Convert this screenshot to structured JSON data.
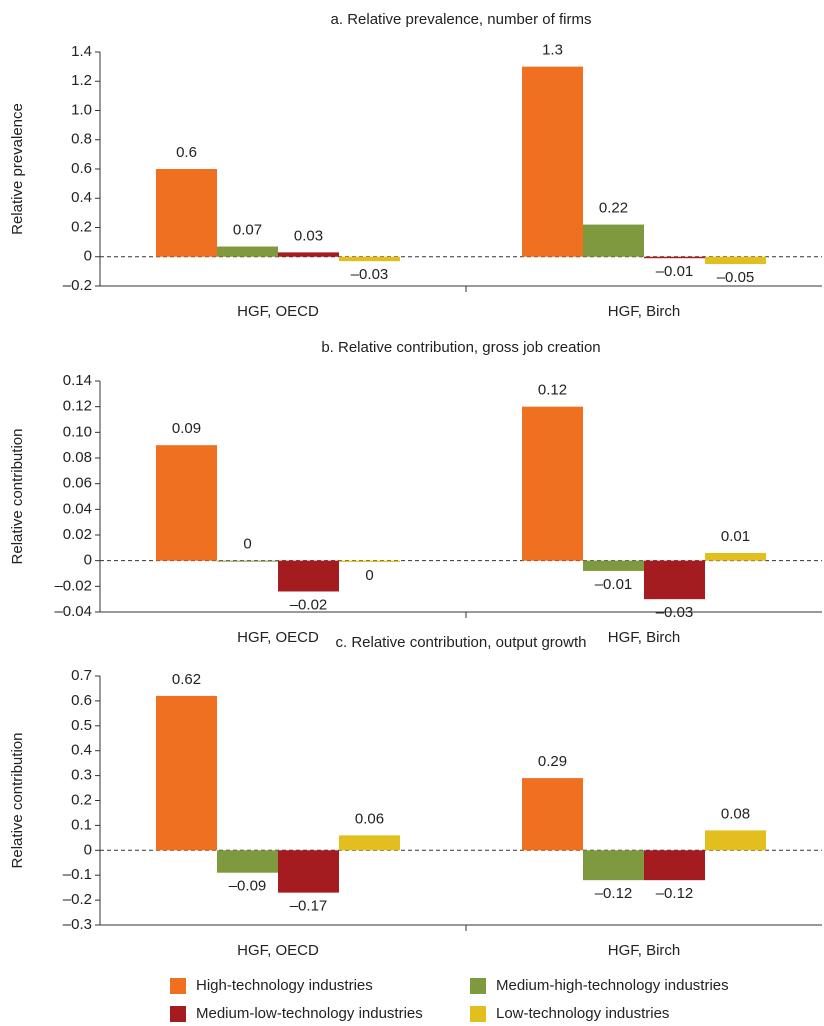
{
  "chart_data": [
    {
      "type": "bar",
      "title": "a. Relative prevalence, number of firms",
      "ylabel": "Relative prevalence",
      "categories": [
        "HGF, OECD",
        "HGF, Birch"
      ],
      "series": [
        {
          "name": "High-technology industries",
          "color": "#f07022",
          "values": [
            0.6,
            1.3
          ],
          "value_labels": [
            "0.6",
            "1.3"
          ]
        },
        {
          "name": "Medium-high-technology industries",
          "color": "#7f9a3e",
          "values": [
            0.07,
            0.22
          ],
          "value_labels": [
            "0.07",
            "0.22"
          ]
        },
        {
          "name": "Medium-low-technology industries",
          "color": "#a51c20",
          "values": [
            0.03,
            -0.01
          ],
          "value_labels": [
            "0.03",
            "–0.01"
          ]
        },
        {
          "name": "Low-technology industries",
          "color": "#e2bf1f",
          "values": [
            -0.03,
            -0.05
          ],
          "value_labels": [
            "–0.03",
            "–0.05"
          ]
        }
      ],
      "ylim": [
        -0.2,
        1.4
      ],
      "yticks": [
        {
          "value": -0.2,
          "label": "–0.2"
        },
        0,
        0.2,
        0.4,
        0.6,
        0.8,
        {
          "value": 1.0,
          "label": "1.0"
        },
        1.2,
        1.4
      ]
    },
    {
      "type": "bar",
      "title": "b. Relative contribution, gross job creation",
      "ylabel": "Relative contribution",
      "categories": [
        "HGF, OECD",
        "HGF, Birch"
      ],
      "series": [
        {
          "values": [
            0.09,
            0.12
          ],
          "value_labels": [
            "0.09",
            "0.12"
          ]
        },
        {
          "values": [
            0,
            -0.008
          ],
          "value_labels": [
            "0",
            "–0.01"
          ]
        },
        {
          "values": [
            -0.024,
            -0.03
          ],
          "value_labels": [
            "–0.02",
            "–0.03"
          ]
        },
        {
          "values": [
            -0.001,
            0.006
          ],
          "value_labels": [
            "0",
            "0.01"
          ]
        }
      ],
      "ylim": [
        -0.04,
        0.14
      ],
      "yticks": [
        {
          "value": -0.04,
          "label": "–0.04"
        },
        {
          "value": -0.02,
          "label": "–0.02"
        },
        0,
        0.02,
        0.04,
        0.06,
        0.08,
        {
          "value": 0.1,
          "label": "0.10"
        },
        0.12,
        0.14
      ]
    },
    {
      "type": "bar",
      "title": "c. Relative contribution, output growth",
      "ylabel": "Relative contribution",
      "categories": [
        "HGF, OECD",
        "HGF, Birch"
      ],
      "series": [
        {
          "values": [
            0.62,
            0.29
          ],
          "value_labels": [
            "0.62",
            "0.29"
          ]
        },
        {
          "values": [
            -0.09,
            -0.12
          ],
          "value_labels": [
            "–0.09",
            "–0.12"
          ]
        },
        {
          "values": [
            -0.17,
            -0.12
          ],
          "value_labels": [
            "–0.17",
            "–0.12"
          ]
        },
        {
          "values": [
            0.06,
            0.08
          ],
          "value_labels": [
            "0.06",
            "0.08"
          ]
        }
      ],
      "ylim": [
        -0.3,
        0.7
      ],
      "yticks": [
        {
          "value": -0.3,
          "label": "–0.3"
        },
        {
          "value": -0.2,
          "label": "–0.2"
        },
        {
          "value": -0.1,
          "label": "–0.1"
        },
        0,
        0.1,
        0.2,
        0.3,
        0.4,
        0.5,
        0.6,
        0.7
      ]
    }
  ]
}
